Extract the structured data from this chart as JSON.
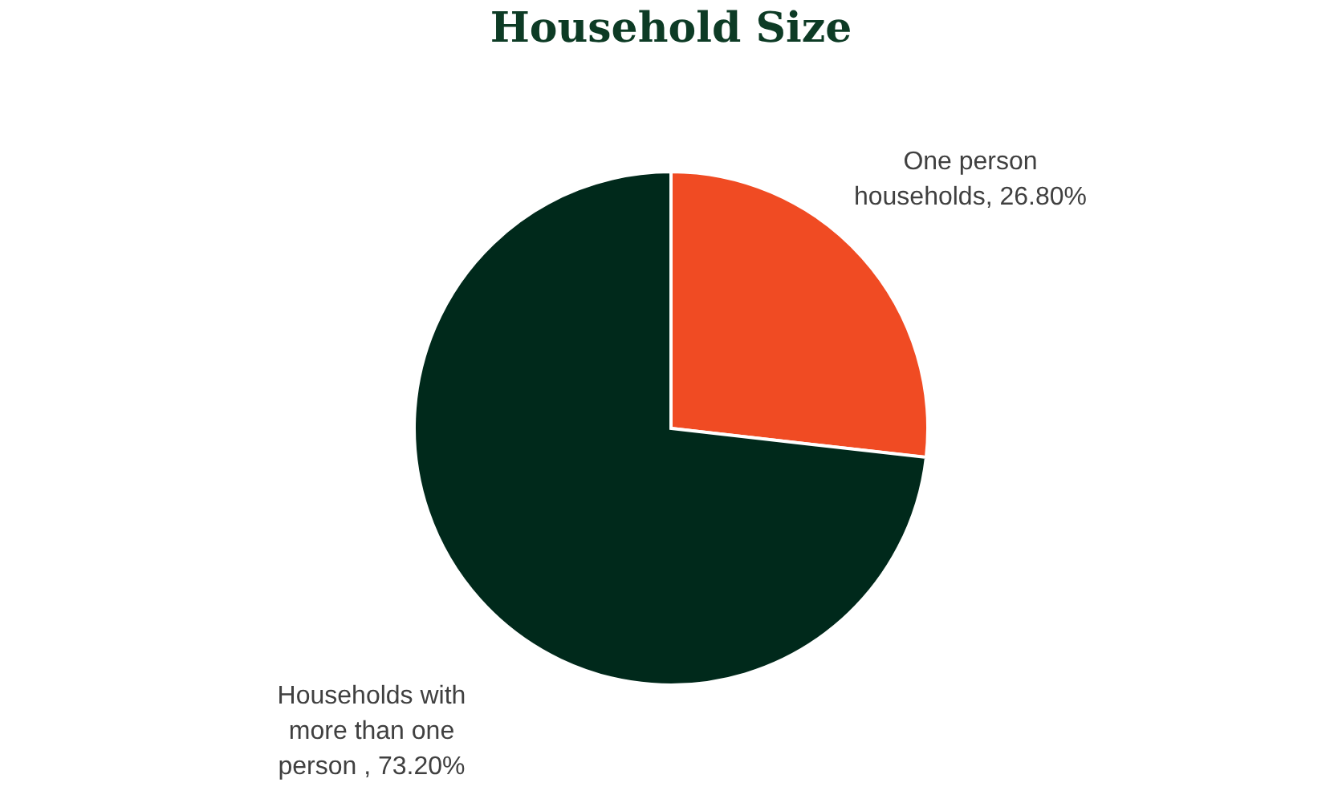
{
  "chart_data": {
    "type": "pie",
    "title": "Household Size",
    "categories": [
      "One person households",
      "Households with more than one person "
    ],
    "values": [
      26.8,
      73.2
    ],
    "value_labels": [
      "26.80%",
      "73.20%"
    ],
    "colors": [
      "#f04b23",
      "#00291b"
    ],
    "legend": false
  }
}
